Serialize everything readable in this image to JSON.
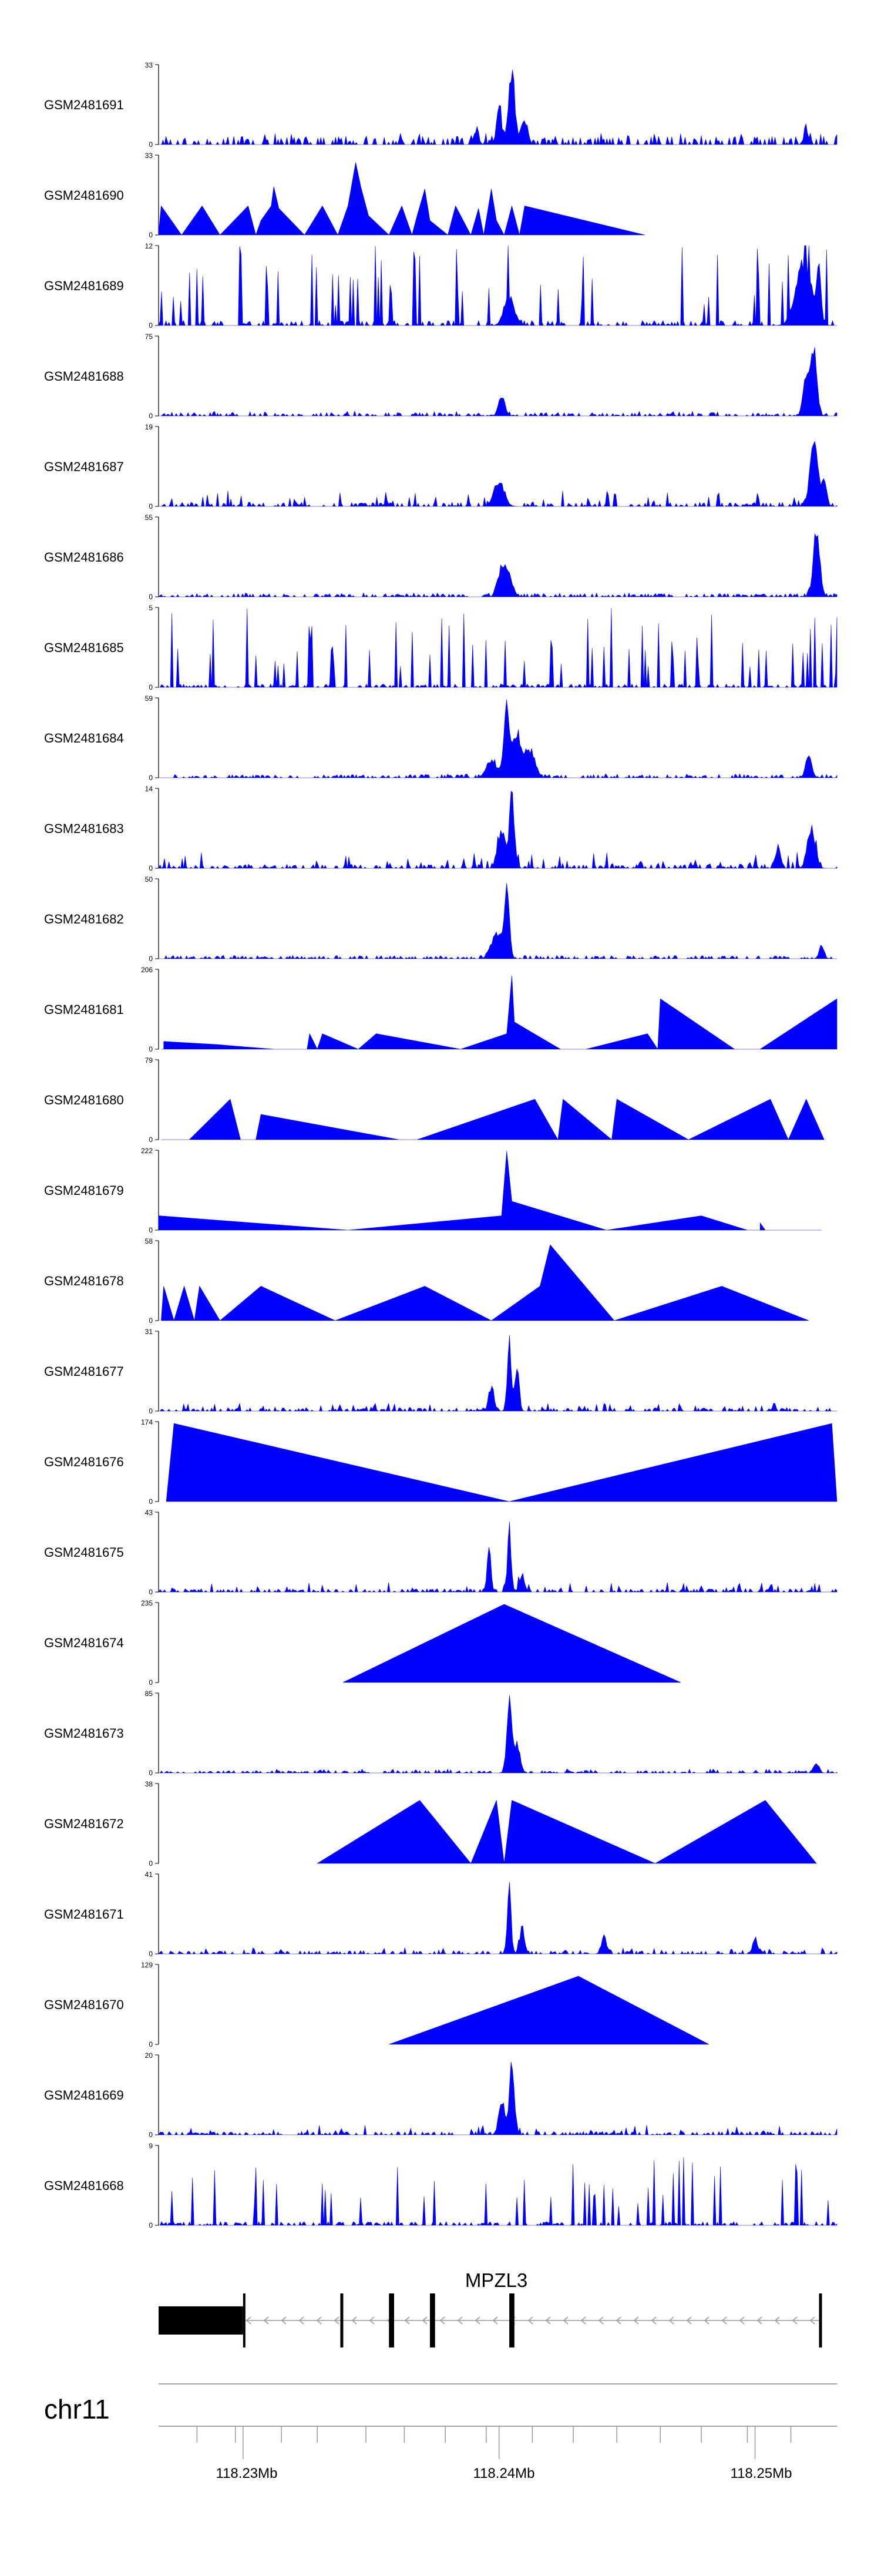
{
  "chart_data": {
    "type": "area",
    "title": "",
    "xlabel": "",
    "ylabel": "",
    "x_unit": "Mb",
    "xlim": [
      118.2267,
      118.2532
    ],
    "grid": false,
    "legend": "none",
    "track_color": "#0000ff",
    "tracks": [
      {
        "name": "GSM2481691",
        "ymax": 33,
        "ymin": 0,
        "baseline": 2,
        "noise": 0.14,
        "seed": 11,
        "peaks": [
          [
            118.2405,
            1.0,
            0.00012
          ],
          [
            118.24,
            0.5,
            0.0001
          ],
          [
            118.241,
            0.35,
            0.00012
          ],
          [
            118.2391,
            0.18,
            0.0001
          ],
          [
            118.252,
            0.18,
            0.0001
          ]
        ],
        "gaps": []
      },
      {
        "name": "GSM2481690",
        "ymax": 33,
        "ymin": 0,
        "points": [
          [
            118.2267,
            0
          ],
          [
            118.2267,
            3
          ],
          [
            118.2267,
            0.5
          ],
          [
            118.2268,
            12
          ],
          [
            118.2276,
            0
          ],
          [
            118.2284,
            12
          ],
          [
            118.2291,
            0
          ],
          [
            118.2302,
            12
          ],
          [
            118.2305,
            0
          ],
          [
            118.2307,
            6
          ],
          [
            118.2311,
            12
          ],
          [
            118.2312,
            20
          ],
          [
            118.2314,
            11
          ],
          [
            118.2324,
            0
          ],
          [
            118.2331,
            12
          ],
          [
            118.2337,
            0
          ],
          [
            118.2341,
            12
          ],
          [
            118.2344,
            30
          ],
          [
            118.2346,
            20
          ],
          [
            118.2349,
            8
          ],
          [
            118.2357,
            0
          ],
          [
            118.2362,
            12
          ],
          [
            118.2366,
            0
          ],
          [
            118.2368,
            8
          ],
          [
            118.2371,
            19
          ],
          [
            118.2373,
            6
          ],
          [
            118.238,
            0
          ],
          [
            118.2383,
            12
          ],
          [
            118.2389,
            0
          ],
          [
            118.2392,
            11
          ],
          [
            118.2394,
            0
          ],
          [
            118.2397,
            19
          ],
          [
            118.2399,
            6
          ],
          [
            118.2402,
            0
          ],
          [
            118.2405,
            12
          ],
          [
            118.2408,
            0
          ],
          [
            118.241,
            12
          ],
          [
            118.2457,
            0
          ]
        ]
      },
      {
        "name": "GSM2481689",
        "ymax": 12,
        "ymin": 0,
        "baseline": 1.2,
        "noise": 1.0,
        "seed": 23,
        "peaks": [
          [
            118.2519,
            0.9,
            0.0003
          ],
          [
            118.2525,
            0.75,
            8e-05
          ],
          [
            118.2404,
            0.4,
            0.0002
          ]
        ],
        "gaps": []
      },
      {
        "name": "GSM2481688",
        "ymax": 75,
        "ymin": 0,
        "baseline": 0.8,
        "noise": 0.06,
        "seed": 31,
        "peaks": [
          [
            118.2523,
            0.92,
            0.00012
          ],
          [
            118.252,
            0.55,
            0.00012
          ],
          [
            118.2401,
            0.3,
            0.00012
          ]
        ],
        "gaps": []
      },
      {
        "name": "GSM2481687",
        "ymax": 19,
        "ymin": 0,
        "baseline": 1.0,
        "noise": 0.2,
        "seed": 37,
        "peaks": [
          [
            118.2523,
            0.92,
            0.00015
          ],
          [
            118.2527,
            0.35,
            0.0001
          ],
          [
            118.24,
            0.35,
            0.0002
          ]
        ],
        "gaps": []
      },
      {
        "name": "GSM2481686",
        "ymax": 55,
        "ymin": 0,
        "baseline": 0.8,
        "noise": 0.05,
        "seed": 41,
        "peaks": [
          [
            118.2524,
            0.9,
            0.00013
          ],
          [
            118.2401,
            0.4,
            0.00015
          ],
          [
            118.2404,
            0.25,
            0.00015
          ]
        ],
        "gaps": []
      },
      {
        "name": "GSM2481685",
        "ymax": 5,
        "ymin": 0,
        "baseline": 0.8,
        "noise": 1.0,
        "seed": 47,
        "peaks": [
          [
            118.2532,
            0.95,
            3e-05
          ]
        ],
        "gaps": []
      },
      {
        "name": "GSM2481684",
        "ymax": 59,
        "ymin": 0,
        "baseline": 0.8,
        "noise": 0.05,
        "seed": 53,
        "peaks": [
          [
            118.2403,
            0.97,
            0.00012
          ],
          [
            118.2407,
            0.62,
            0.00015
          ],
          [
            118.2412,
            0.4,
            0.0002
          ],
          [
            118.2397,
            0.25,
            0.0002
          ],
          [
            118.2521,
            0.3,
            0.00012
          ]
        ],
        "gaps": []
      },
      {
        "name": "GSM2481683",
        "ymax": 14,
        "ymin": 0,
        "baseline": 1.0,
        "noise": 0.2,
        "seed": 59,
        "peaks": [
          [
            118.2405,
            0.95,
            0.0001
          ],
          [
            118.2401,
            0.5,
            0.00015
          ],
          [
            118.2522,
            0.6,
            0.00015
          ],
          [
            118.2509,
            0.3,
            0.0001
          ]
        ],
        "gaps": []
      },
      {
        "name": "GSM2481682",
        "ymax": 50,
        "ymin": 0,
        "baseline": 0.8,
        "noise": 0.04,
        "seed": 61,
        "peaks": [
          [
            118.2403,
            0.95,
            0.0001
          ],
          [
            118.2399,
            0.35,
            0.0002
          ],
          [
            118.2526,
            0.16,
            0.0001
          ]
        ],
        "gaps": []
      },
      {
        "name": "GSM2481681",
        "ymax": 206,
        "ymin": 0,
        "points": [
          [
            118.2268,
            0
          ],
          [
            118.2269,
            0
          ],
          [
            118.2269,
            20
          ],
          [
            118.229,
            12
          ],
          [
            118.2312,
            0
          ],
          [
            118.2325,
            0
          ],
          [
            118.2326,
            40
          ],
          [
            118.2329,
            0
          ],
          [
            118.2331,
            40
          ],
          [
            118.2345,
            0
          ],
          [
            118.2352,
            40
          ],
          [
            118.2385,
            0
          ],
          [
            118.2403,
            40
          ],
          [
            118.2405,
            190
          ],
          [
            118.2406,
            70
          ],
          [
            118.2424,
            0
          ],
          [
            118.2434,
            0
          ],
          [
            118.2458,
            40
          ],
          [
            118.2462,
            0
          ],
          [
            118.2463,
            130
          ],
          [
            118.2492,
            0
          ],
          [
            118.2502,
            0
          ],
          [
            118.2532,
            130
          ]
        ]
      },
      {
        "name": "GSM2481680",
        "ymax": 79,
        "ymin": 0,
        "points": [
          [
            118.2268,
            0
          ],
          [
            118.2279,
            0
          ],
          [
            118.2295,
            40
          ],
          [
            118.2299,
            0
          ],
          [
            118.2305,
            0
          ],
          [
            118.2307,
            25
          ],
          [
            118.2361,
            0
          ],
          [
            118.2368,
            0
          ],
          [
            118.2414,
            40
          ],
          [
            118.2423,
            0
          ],
          [
            118.2425,
            40
          ],
          [
            118.2444,
            0
          ],
          [
            118.2446,
            40
          ],
          [
            118.2474,
            0
          ],
          [
            118.2506,
            40
          ],
          [
            118.2513,
            0
          ],
          [
            118.252,
            40
          ],
          [
            118.2527,
            0
          ],
          [
            118.2527,
            0
          ]
        ]
      },
      {
        "name": "GSM2481679",
        "ymax": 222,
        "ymin": 0,
        "points": [
          [
            118.2267,
            0
          ],
          [
            118.2267,
            40
          ],
          [
            118.2341,
            0
          ],
          [
            118.2401,
            40
          ],
          [
            118.2403,
            220
          ],
          [
            118.2405,
            80
          ],
          [
            118.2442,
            0
          ],
          [
            118.2479,
            40
          ],
          [
            118.2497,
            0
          ],
          [
            118.2502,
            0
          ],
          [
            118.2502,
            20
          ],
          [
            118.2504,
            0
          ],
          [
            118.2526,
            0
          ],
          [
            118.2526,
            0
          ]
        ]
      },
      {
        "name": "GSM2481678",
        "ymax": 58,
        "ymin": 0,
        "points": [
          [
            118.2268,
            0
          ],
          [
            118.2269,
            25
          ],
          [
            118.2273,
            0
          ],
          [
            118.2277,
            25
          ],
          [
            118.2281,
            0
          ],
          [
            118.2283,
            25
          ],
          [
            118.2291,
            0
          ],
          [
            118.2307,
            25
          ],
          [
            118.2336,
            0
          ],
          [
            118.2371,
            25
          ],
          [
            118.2397,
            0
          ],
          [
            118.2416,
            25
          ],
          [
            118.242,
            55
          ],
          [
            118.2445,
            0
          ],
          [
            118.2487,
            25
          ],
          [
            118.2521,
            0
          ]
        ]
      },
      {
        "name": "GSM2481677",
        "ymax": 31,
        "ymin": 0,
        "baseline": 0.8,
        "noise": 0.1,
        "seed": 67,
        "peaks": [
          [
            118.2404,
            0.97,
            8e-05
          ],
          [
            118.2407,
            0.62,
            8e-05
          ],
          [
            118.2397,
            0.35,
            0.0001
          ]
        ],
        "gaps": []
      },
      {
        "name": "GSM2481676",
        "ymax": 174,
        "ymin": 0,
        "points": [
          [
            118.227,
            0
          ],
          [
            118.2273,
            170
          ],
          [
            118.2404,
            0
          ],
          [
            118.253,
            170
          ],
          [
            118.2532,
            0
          ]
        ]
      },
      {
        "name": "GSM2481675",
        "ymax": 43,
        "ymin": 0,
        "baseline": 0.8,
        "noise": 0.12,
        "seed": 71,
        "peaks": [
          [
            118.2404,
            0.9,
            7e-05
          ],
          [
            118.2396,
            0.62,
            7e-05
          ],
          [
            118.2409,
            0.25,
            0.0001
          ]
        ],
        "gaps": []
      },
      {
        "name": "GSM2481674",
        "ymax": 235,
        "ymin": 0,
        "points": [
          [
            118.2339,
            0
          ],
          [
            118.2339,
            0
          ],
          [
            118.2402,
            230
          ],
          [
            118.2471,
            0
          ]
        ]
      },
      {
        "name": "GSM2481673",
        "ymax": 85,
        "ymin": 0,
        "baseline": 0.6,
        "noise": 0.05,
        "seed": 73,
        "peaks": [
          [
            118.2404,
            0.95,
            0.0001
          ],
          [
            118.2407,
            0.4,
            0.00012
          ],
          [
            118.2524,
            0.12,
            0.0001
          ]
        ],
        "gaps": []
      },
      {
        "name": "GSM2481672",
        "ymax": 38,
        "ymin": 0,
        "points": [
          [
            118.2329,
            0
          ],
          [
            118.2329,
            0
          ],
          [
            118.2369,
            30
          ],
          [
            118.2389,
            0
          ],
          [
            118.2399,
            30
          ],
          [
            118.2402,
            0
          ],
          [
            118.2405,
            30
          ],
          [
            118.2461,
            0
          ],
          [
            118.2504,
            30
          ],
          [
            118.2524,
            0
          ]
        ]
      },
      {
        "name": "GSM2481671",
        "ymax": 41,
        "ymin": 0,
        "baseline": 0.8,
        "noise": 0.08,
        "seed": 79,
        "peaks": [
          [
            118.2404,
            0.97,
            7e-05
          ],
          [
            118.2409,
            0.35,
            0.0001
          ],
          [
            118.2441,
            0.25,
            0.0001
          ],
          [
            118.25,
            0.2,
            0.0001
          ]
        ],
        "gaps": []
      },
      {
        "name": "GSM2481670",
        "ymax": 129,
        "ymin": 0,
        "points": [
          [
            118.2357,
            0
          ],
          [
            118.2357,
            0
          ],
          [
            118.2431,
            110
          ],
          [
            118.2482,
            0
          ],
          [
            118.2482,
            0
          ]
        ]
      },
      {
        "name": "GSM2481669",
        "ymax": 20,
        "ymin": 0,
        "baseline": 0.8,
        "noise": 0.12,
        "seed": 83,
        "peaks": [
          [
            118.2405,
            0.92,
            0.0001
          ],
          [
            118.2401,
            0.4,
            0.00012
          ]
        ],
        "gaps": []
      },
      {
        "name": "GSM2481668",
        "ymax": 9,
        "ymin": 0,
        "baseline": 0.9,
        "noise": 0.85,
        "seed": 89,
        "peaks": [],
        "gaps": []
      }
    ],
    "gene": {
      "name": "MPZL3",
      "strand": "-",
      "start": 118.2267,
      "end": 118.2526,
      "exons": [
        [
          118.2267,
          118.23
        ],
        [
          118.2338,
          118.2339
        ],
        [
          118.2357,
          118.2359
        ],
        [
          118.2373,
          118.2375
        ],
        [
          118.2404,
          118.2406
        ],
        [
          118.2525,
          118.2526
        ]
      ]
    },
    "chromosome": "chr11",
    "axis": {
      "ticks": [
        118.2282,
        118.2297,
        118.2315,
        118.2329,
        118.2348,
        118.2363,
        118.2379,
        118.2395,
        118.2413,
        118.2429,
        118.2446,
        118.2463,
        118.2479,
        118.2497,
        118.2514
      ],
      "labeled_ticks": [
        118.23,
        118.24,
        118.25
      ],
      "tick_labels": [
        "118.23Mb",
        "118.24Mb",
        "118.25Mb"
      ]
    }
  }
}
